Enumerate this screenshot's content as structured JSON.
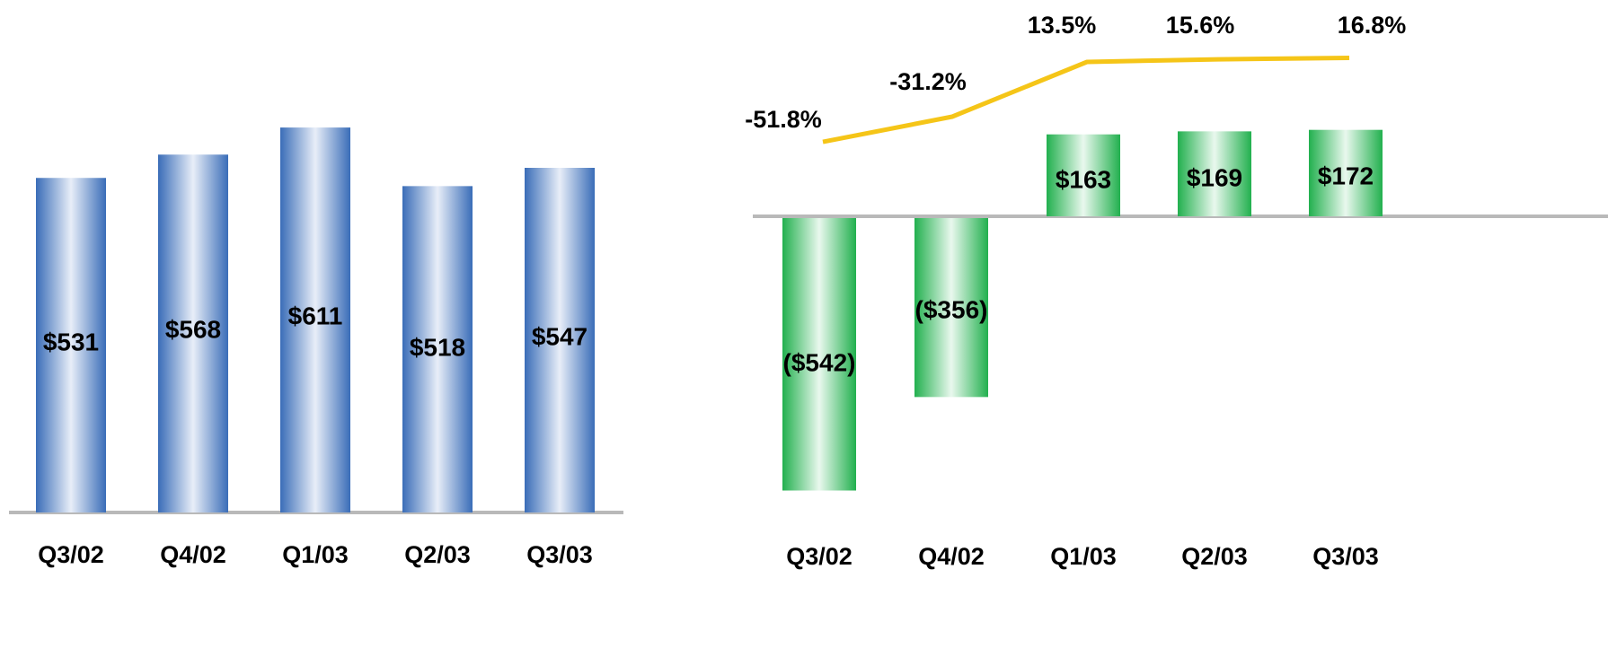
{
  "colors": {
    "left_bar_edge": "#3a6db8",
    "left_bar_center": "#e8eef8",
    "right_bar_edge": "#22b04e",
    "right_bar_center": "#e9f8ee",
    "line": "#f5c518",
    "baseline": "#b9b9b9"
  },
  "chart_data": [
    {
      "type": "bar",
      "title": "",
      "xlabel": "",
      "ylabel": "",
      "categories": [
        "Q3/02",
        "Q4/02",
        "Q1/03",
        "Q2/03",
        "Q3/03"
      ],
      "series": [
        {
          "values": [
            531,
            568,
            611,
            518,
            547
          ],
          "labels": [
            "$531",
            "$568",
            "$611",
            "$518",
            "$547"
          ]
        }
      ],
      "ylim": [
        0,
        800
      ],
      "grid": false,
      "legend": "none"
    },
    {
      "type": "bar",
      "title": "",
      "xlabel": "",
      "ylabel": "",
      "categories": [
        "Q3/02",
        "Q4/02",
        "Q1/03",
        "Q2/03",
        "Q3/03"
      ],
      "series": [
        {
          "values": [
            -542,
            -356,
            163,
            169,
            172
          ],
          "labels": [
            "($542)",
            "($356)",
            "$163",
            "$169",
            "$172"
          ]
        },
        {
          "type": "line",
          "values": [
            -51.8,
            -31.2,
            13.5,
            15.6,
            16.8
          ],
          "labels": [
            "-51.8%",
            "-31.2%",
            "13.5%",
            "15.6%",
            "16.8%"
          ]
        }
      ],
      "grid": false,
      "legend": "none"
    }
  ]
}
